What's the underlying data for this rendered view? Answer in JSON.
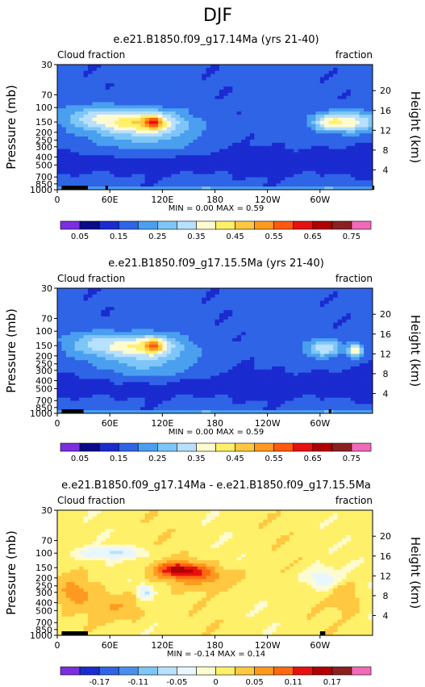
{
  "figure_title": "DJF",
  "colors": {
    "main_palette": [
      "#7a2ee0",
      "#0a0a8a",
      "#1a2bd0",
      "#2f64e6",
      "#4a9fef",
      "#7ec6f7",
      "#b8e0ff",
      "#fffbd0",
      "#fff06a",
      "#ffc840",
      "#ff9a20",
      "#ff5a10",
      "#e81010",
      "#b00000",
      "#8c2020",
      "#f26ab8"
    ],
    "diff_palette": [
      "#7a2ee0",
      "#1a2bd0",
      "#2f64e6",
      "#4a8ff0",
      "#7ec6f7",
      "#b8e0ff",
      "#e8f6ff",
      "#fffbd0",
      "#fff06a",
      "#ffc840",
      "#ff9a20",
      "#ff6a10",
      "#e81010",
      "#b00000",
      "#8c2020",
      "#f26ab8"
    ]
  },
  "chart_data": [
    {
      "type": "heatmap",
      "title": "e.e21.B1850.f09_g17.14Ma (yrs 21-40)",
      "left_label": "Cloud fraction",
      "right_label": "fraction",
      "ylabel": "Pressure (mb)",
      "y2label": "Height (km)",
      "x_ticks": [
        "0",
        "60E",
        "120E",
        "180",
        "120W",
        "60W"
      ],
      "x_tick_values": [
        0,
        60,
        120,
        180,
        240,
        300
      ],
      "xlim": [
        0,
        360
      ],
      "y_ticks": [
        "30",
        "70",
        "100",
        "150",
        "200",
        "250",
        "300",
        "400",
        "500",
        "700",
        "850",
        "1000"
      ],
      "y_tick_values": [
        30,
        70,
        100,
        150,
        200,
        250,
        300,
        400,
        500,
        700,
        850,
        1000
      ],
      "ylim": [
        30,
        1000
      ],
      "y_scale": "log",
      "y_reversed": true,
      "height_ticks": [
        "20",
        "16",
        "12",
        "8",
        "4"
      ],
      "height_tick_values": [
        20,
        16,
        12,
        8,
        4
      ],
      "min_max_text": "MIN =    0.00   MAX =    0.59",
      "colorbar_labels": [
        "0.05",
        "0.15",
        "0.25",
        "0.35",
        "0.45",
        "0.55",
        "0.65",
        "0.75"
      ],
      "colorbar_levels": [
        0.05,
        0.1,
        0.15,
        0.2,
        0.25,
        0.3,
        0.35,
        0.4,
        0.45,
        0.5,
        0.55,
        0.6,
        0.65,
        0.7,
        0.75
      ],
      "palette": "main",
      "features": [
        {
          "lon": 110,
          "p": 150,
          "sx": 10,
          "sy": 0.18,
          "amp": 0.22
        },
        {
          "lon": 95,
          "p": 150,
          "sx": 45,
          "sy": 0.32,
          "amp": 0.22
        },
        {
          "lon": 340,
          "p": 150,
          "sx": 25,
          "sy": 0.3,
          "amp": 0.2
        },
        {
          "lon": 310,
          "p": 150,
          "sx": 20,
          "sy": 0.25,
          "amp": 0.2
        },
        {
          "lon": 40,
          "p": 130,
          "sx": 35,
          "sy": 0.35,
          "amp": 0.12
        },
        {
          "lon": 100,
          "p": 220,
          "sx": 60,
          "sy": 0.6,
          "amp": 0.1
        }
      ],
      "ground": [
        [
          5,
          35
        ],
        [
          55,
          58
        ],
        [
          360,
          362
        ]
      ]
    },
    {
      "type": "heatmap",
      "title": "e.e21.B1850.f09_g17.15.5Ma (yrs 21-40)",
      "left_label": "Cloud fraction",
      "right_label": "fraction",
      "ylabel": "Pressure (mb)",
      "y2label": "Height (km)",
      "x_ticks": [
        "0",
        "60E",
        "120E",
        "180",
        "120W",
        "60W"
      ],
      "x_tick_values": [
        0,
        60,
        120,
        180,
        240,
        300
      ],
      "xlim": [
        0,
        360
      ],
      "y_ticks": [
        "30",
        "70",
        "100",
        "150",
        "200",
        "250",
        "300",
        "400",
        "500",
        "700",
        "850",
        "1000"
      ],
      "y_tick_values": [
        30,
        70,
        100,
        150,
        200,
        250,
        300,
        400,
        500,
        700,
        850,
        1000
      ],
      "ylim": [
        30,
        1000
      ],
      "y_scale": "log",
      "y_reversed": true,
      "height_ticks": [
        "20",
        "16",
        "12",
        "8",
        "4"
      ],
      "height_tick_values": [
        20,
        16,
        12,
        8,
        4
      ],
      "min_max_text": "MIN =    0.00   MAX =    0.59",
      "colorbar_labels": [
        "0.05",
        "0.15",
        "0.25",
        "0.35",
        "0.45",
        "0.55",
        "0.65",
        "0.75"
      ],
      "colorbar_levels": [
        0.05,
        0.1,
        0.15,
        0.2,
        0.25,
        0.3,
        0.35,
        0.4,
        0.45,
        0.5,
        0.55,
        0.6,
        0.65,
        0.7,
        0.75
      ],
      "palette": "main",
      "features": [
        {
          "lon": 110,
          "p": 150,
          "sx": 10,
          "sy": 0.18,
          "amp": 0.22
        },
        {
          "lon": 95,
          "p": 150,
          "sx": 45,
          "sy": 0.32,
          "amp": 0.2
        },
        {
          "lon": 340,
          "p": 170,
          "sx": 8,
          "sy": 0.2,
          "amp": 0.25
        },
        {
          "lon": 305,
          "p": 160,
          "sx": 20,
          "sy": 0.25,
          "amp": 0.18
        },
        {
          "lon": 40,
          "p": 140,
          "sx": 35,
          "sy": 0.35,
          "amp": 0.1
        },
        {
          "lon": 100,
          "p": 250,
          "sx": 55,
          "sy": 0.55,
          "amp": 0.1
        }
      ],
      "ground": [
        [
          5,
          30
        ],
        [
          310,
          313
        ]
      ]
    },
    {
      "type": "heatmap",
      "title": "e.e21.B1850.f09_g17.14Ma - e.e21.B1850.f09_g17.15.5Ma",
      "left_label": "Cloud fraction",
      "right_label": "fraction",
      "ylabel": "Pressure (mb)",
      "y2label": "Height (km)",
      "x_ticks": [
        "0",
        "60E",
        "120E",
        "180",
        "120W",
        "60W"
      ],
      "x_tick_values": [
        0,
        60,
        120,
        180,
        240,
        300
      ],
      "xlim": [
        0,
        360
      ],
      "y_ticks": [
        "30",
        "70",
        "100",
        "150",
        "200",
        "250",
        "300",
        "400",
        "500",
        "700",
        "850",
        "1000"
      ],
      "y_tick_values": [
        30,
        70,
        100,
        150,
        200,
        250,
        300,
        400,
        500,
        700,
        850,
        1000
      ],
      "ylim": [
        30,
        1000
      ],
      "y_scale": "log",
      "y_reversed": true,
      "height_ticks": [
        "20",
        "16",
        "12",
        "8",
        "4"
      ],
      "height_tick_values": [
        20,
        16,
        12,
        8,
        4
      ],
      "min_max_text": "MIN =   -0.14   MAX =    0.14",
      "colorbar_labels": [
        "-0.17",
        "-0.11",
        "-0.05",
        "0",
        "0.05",
        "0.11",
        "0.17"
      ],
      "colorbar_levels": [
        -0.2,
        -0.17,
        -0.14,
        -0.11,
        -0.08,
        -0.05,
        -0.02,
        0,
        0.02,
        0.05,
        0.08,
        0.11,
        0.14,
        0.17,
        0.2
      ],
      "palette": "diff",
      "features": [
        {
          "lon": 140,
          "p": 160,
          "sx": 28,
          "sy": 0.22,
          "amp": 0.13
        },
        {
          "lon": 170,
          "p": 200,
          "sx": 40,
          "sy": 0.3,
          "amp": 0.05
        },
        {
          "lon": 60,
          "p": 100,
          "sx": 40,
          "sy": 0.15,
          "amp": -0.06
        },
        {
          "lon": 100,
          "p": 300,
          "sx": 8,
          "sy": 0.2,
          "amp": -0.07
        },
        {
          "lon": 300,
          "p": 200,
          "sx": 20,
          "sy": 0.3,
          "amp": -0.05
        },
        {
          "lon": 20,
          "p": 300,
          "sx": 20,
          "sy": 0.4,
          "amp": 0.05
        },
        {
          "lon": 70,
          "p": 450,
          "sx": 30,
          "sy": 0.4,
          "amp": 0.04
        },
        {
          "lon": 330,
          "p": 350,
          "sx": 15,
          "sy": 0.4,
          "amp": 0.04
        }
      ],
      "ground": [
        [
          5,
          35
        ],
        [
          300,
          306
        ]
      ]
    }
  ]
}
